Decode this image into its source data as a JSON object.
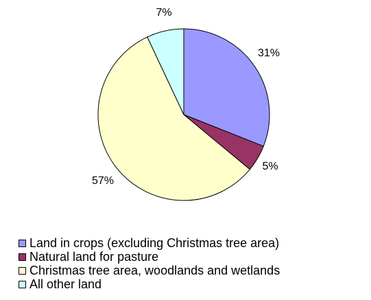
{
  "chart_data": {
    "type": "pie",
    "title": "",
    "series": [
      {
        "name": "Land in crops (excluding Christmas tree area)",
        "value": 31,
        "label": "31%",
        "color": "#9999ff"
      },
      {
        "name": "Natural land for pasture",
        "value": 5,
        "label": "5%",
        "color": "#993366"
      },
      {
        "name": "Christmas tree area, woodlands and wetlands",
        "value": 57,
        "label": "57%",
        "color": "#ffffcc"
      },
      {
        "name": "All other land",
        "value": 7,
        "label": "7%",
        "color": "#ccffff"
      }
    ],
    "legend": "bottom",
    "start": "top, clockwise"
  }
}
